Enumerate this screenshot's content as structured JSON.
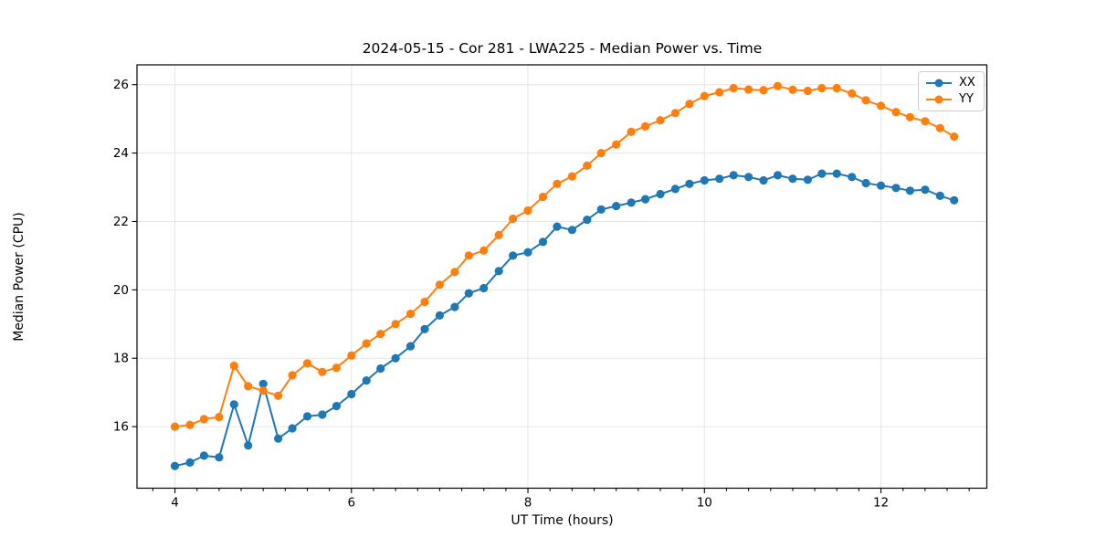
{
  "header": {
    "title": "2024-05-15 - Cor 281 - LWA225 - Median Power vs. Time"
  },
  "chart_data": {
    "type": "line",
    "title": "2024-05-15 - Cor 281 - LWA225 - Median Power vs. Time",
    "xlabel": "UT Time (hours)",
    "ylabel": "Median Power (CPU)",
    "xlim": [
      3.57,
      13.2
    ],
    "ylim": [
      14.2,
      26.58
    ],
    "xticks": [
      4,
      6,
      8,
      10,
      12
    ],
    "xtick_labels": [
      "4",
      "6",
      "8",
      "10",
      "12"
    ],
    "x_minor_step": 0.25,
    "yticks": [
      16,
      18,
      20,
      22,
      24,
      26
    ],
    "ytick_labels": [
      "16",
      "18",
      "20",
      "22",
      "24",
      "26"
    ],
    "grid": true,
    "grid_color": "#e6e6e6",
    "legend_position": "upper right",
    "marker": "circle",
    "x": [
      4.0,
      4.17,
      4.33,
      4.5,
      4.67,
      4.83,
      5.0,
      5.17,
      5.33,
      5.5,
      5.67,
      5.83,
      6.0,
      6.17,
      6.33,
      6.5,
      6.67,
      6.83,
      7.0,
      7.17,
      7.33,
      7.5,
      7.67,
      7.83,
      8.0,
      8.17,
      8.33,
      8.5,
      8.67,
      8.83,
      9.0,
      9.17,
      9.33,
      9.5,
      9.67,
      9.83,
      10.0,
      10.17,
      10.33,
      10.5,
      10.67,
      10.83,
      11.0,
      11.17,
      11.33,
      11.5,
      11.67,
      11.83,
      12.0,
      12.17,
      12.33,
      12.5,
      12.67,
      12.83
    ],
    "series": [
      {
        "name": "XX",
        "color": "#1f77b4",
        "values": [
          14.85,
          14.95,
          15.15,
          15.1,
          16.65,
          15.45,
          17.25,
          15.65,
          15.95,
          16.3,
          16.35,
          16.6,
          16.95,
          17.35,
          17.7,
          18.0,
          18.35,
          18.85,
          19.25,
          19.5,
          19.9,
          20.05,
          20.55,
          21.0,
          21.1,
          21.4,
          21.85,
          21.75,
          22.05,
          22.35,
          22.45,
          22.55,
          22.65,
          22.8,
          22.95,
          23.1,
          23.2,
          23.25,
          23.35,
          23.3,
          23.2,
          23.35,
          23.25,
          23.22,
          23.4,
          23.4,
          23.3,
          23.12,
          23.05,
          22.98,
          22.9,
          22.93,
          22.75,
          22.62
        ]
      },
      {
        "name": "YY",
        "color": "#ff7f0e",
        "values": [
          16.0,
          16.05,
          16.22,
          16.28,
          17.78,
          17.18,
          17.05,
          16.9,
          17.5,
          17.85,
          17.6,
          17.72,
          18.08,
          18.43,
          18.71,
          19.0,
          19.3,
          19.65,
          20.15,
          20.52,
          21.0,
          21.15,
          21.6,
          22.08,
          22.32,
          22.72,
          23.1,
          23.32,
          23.63,
          24.0,
          24.25,
          24.62,
          24.78,
          24.96,
          25.17,
          25.44,
          25.67,
          25.78,
          25.9,
          25.86,
          25.84,
          25.96,
          25.85,
          25.82,
          25.9,
          25.9,
          25.74,
          25.54,
          25.38,
          25.2,
          25.05,
          24.93,
          24.73,
          24.48
        ]
      }
    ]
  },
  "legend": {
    "items": [
      {
        "label": "XX",
        "color": "#1f77b4"
      },
      {
        "label": "YY",
        "color": "#ff7f0e"
      }
    ]
  }
}
